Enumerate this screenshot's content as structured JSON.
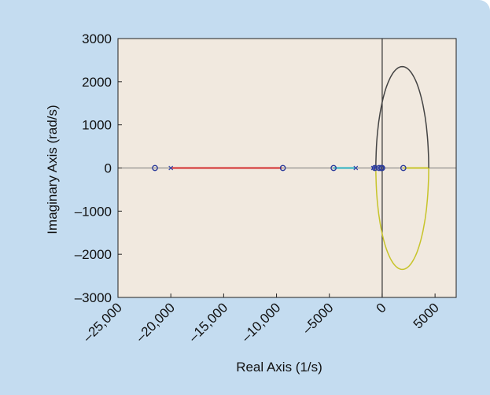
{
  "chart_data": {
    "type": "scatter",
    "title": "",
    "xlabel": "Real Axis (1/s)",
    "ylabel": "Imaginary Axis (rad/s)",
    "xlim": [
      -25000,
      7000
    ],
    "ylim": [
      -3000,
      3000
    ],
    "x_ticks": [
      {
        "value": -25000,
        "label": "–25,000"
      },
      {
        "value": -20000,
        "label": "–20,000"
      },
      {
        "value": -15000,
        "label": "–15,000"
      },
      {
        "value": -10000,
        "label": "–10,000"
      },
      {
        "value": -5000,
        "label": "–5000"
      },
      {
        "value": 0,
        "label": "0"
      },
      {
        "value": 5000,
        "label": "5000"
      }
    ],
    "y_ticks": [
      {
        "value": 3000,
        "label": "3000"
      },
      {
        "value": 2000,
        "label": "2000"
      },
      {
        "value": 1000,
        "label": "1000"
      },
      {
        "value": 0,
        "label": "0"
      },
      {
        "value": -1000,
        "label": "–1000"
      },
      {
        "value": -2000,
        "label": "–2000"
      },
      {
        "value": -3000,
        "label": "–3000"
      }
    ],
    "grid": false,
    "plot_background": "#f1e9df",
    "panel_background": "#c4dcf0",
    "branches": [
      {
        "kind": "segment",
        "color": "#d32b2b",
        "x": [
          -20000,
          -9500
        ],
        "y": [
          0,
          0
        ]
      },
      {
        "kind": "segment",
        "color": "#28b0c0",
        "x": [
          -4600,
          -2500
        ],
        "y": [
          0,
          0
        ]
      },
      {
        "kind": "segment",
        "color": "#3333aa",
        "x": [
          -900,
          -600
        ],
        "y": [
          0,
          0
        ]
      },
      {
        "kind": "segment",
        "color": "#c7c42a",
        "x": [
          2000,
          4400
        ],
        "y": [
          0,
          0
        ]
      },
      {
        "kind": "ellipse-arc",
        "color": "#444444",
        "cx": 1900,
        "rx": 2500,
        "ry": 2350,
        "from_deg": 0,
        "to_deg": 180
      },
      {
        "kind": "ellipse-arc",
        "color": "#c7c42a",
        "cx": 1900,
        "rx": 2500,
        "ry": 2350,
        "from_deg": 180,
        "to_deg": 360
      }
    ],
    "zeros": [
      {
        "x": -21500,
        "y": 0
      },
      {
        "x": -9400,
        "y": 0
      },
      {
        "x": -4600,
        "y": 0
      },
      {
        "x": -700,
        "y": 0
      },
      {
        "x": -300,
        "y": 0
      },
      {
        "x": -100,
        "y": 0
      },
      {
        "x": 0,
        "y": 0
      },
      {
        "x": 2000,
        "y": 0
      }
    ],
    "poles": [
      {
        "x": -20000,
        "y": 0
      },
      {
        "x": -2500,
        "y": 0
      },
      {
        "x": -850,
        "y": 0
      },
      {
        "x": -600,
        "y": 0
      }
    ]
  }
}
